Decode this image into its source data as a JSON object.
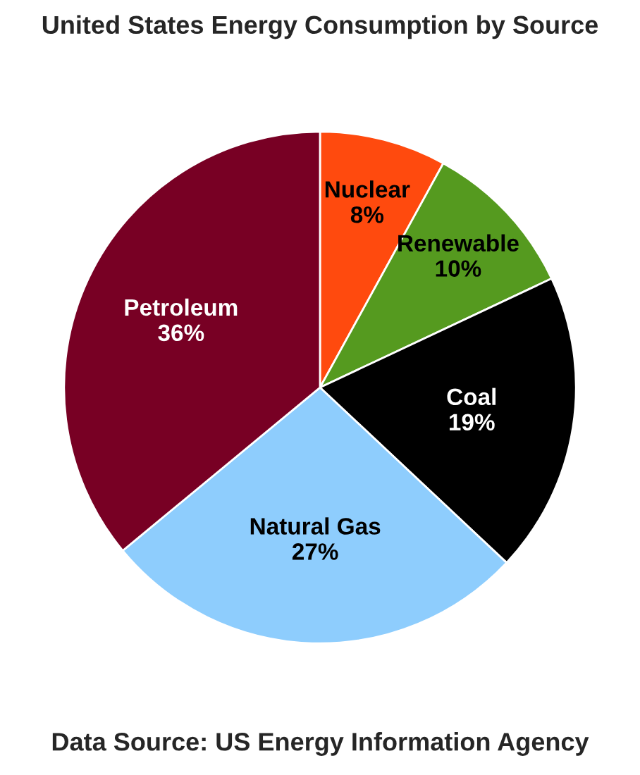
{
  "chart_data": {
    "type": "pie",
    "title": "United States Energy Consumption by Source",
    "categories": [
      "Nuclear",
      "Renewable",
      "Coal",
      "Natural Gas",
      "Petroleum"
    ],
    "values": [
      8,
      10,
      19,
      27,
      36
    ],
    "value_labels": [
      "8%",
      "10%",
      "19%",
      "27%",
      "36%"
    ],
    "colors": [
      "#ff4a0e",
      "#559a1f",
      "#000000",
      "#8ecdfd",
      "#780024"
    ],
    "annotations": [
      "Data Source: US Energy Information Agency"
    ]
  }
}
